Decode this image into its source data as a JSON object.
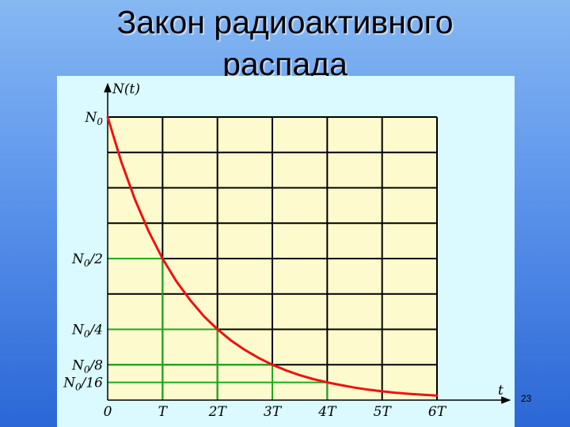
{
  "slide": {
    "title_line1": "Закон радиоактивного",
    "title_line2": "распада",
    "page_number": "23"
  },
  "colors": {
    "background_top": "#86b8f2",
    "background_bottom": "#2b67d6",
    "panel": "#dafaff",
    "plot_area": "#fdfbcd",
    "grid": "#000000",
    "guide_lines": "#1fa81f",
    "curve": "#ee1111"
  },
  "chart_data": {
    "type": "line",
    "title": "",
    "xlabel": "t",
    "ylabel": "N(t)",
    "x_ticks": [
      "0",
      "T",
      "2T",
      "3T",
      "4T",
      "5T",
      "6T"
    ],
    "y_ticks": [
      {
        "value": 1,
        "base": "N",
        "sub": "0",
        "tail": ""
      },
      {
        "value": 0.5,
        "base": "N",
        "sub": "0",
        "tail": "/2"
      },
      {
        "value": 0.25,
        "base": "N",
        "sub": "0",
        "tail": "/4"
      },
      {
        "value": 0.125,
        "base": "N",
        "sub": "0",
        "tail": "/8"
      },
      {
        "value": 0.0625,
        "base": "N",
        "sub": "0",
        "tail": "/16"
      }
    ],
    "xlim": [
      0,
      6
    ],
    "ylim": [
      0,
      1
    ],
    "grid": true,
    "grid_x_divisions": 6,
    "grid_y_divisions": 8,
    "series": [
      {
        "x": [
          0,
          0.25,
          0.5,
          0.75,
          1,
          1.25,
          1.5,
          1.75,
          2,
          2.25,
          2.5,
          2.75,
          3,
          3.25,
          3.5,
          3.75,
          4,
          4.25,
          4.5,
          4.75,
          5,
          5.25,
          5.5,
          5.75,
          6
        ],
        "y": [
          1,
          0.841,
          0.707,
          0.595,
          0.5,
          0.42,
          0.354,
          0.297,
          0.25,
          0.21,
          0.177,
          0.149,
          0.125,
          0.105,
          0.088,
          0.074,
          0.0625,
          0.053,
          0.044,
          0.037,
          0.031,
          0.026,
          0.022,
          0.019,
          0.016
        ]
      }
    ],
    "guides": [
      {
        "x": 1,
        "y": 0.5
      },
      {
        "x": 2,
        "y": 0.25
      },
      {
        "x": 3,
        "y": 0.125
      },
      {
        "x": 4,
        "y": 0.0625
      }
    ]
  }
}
